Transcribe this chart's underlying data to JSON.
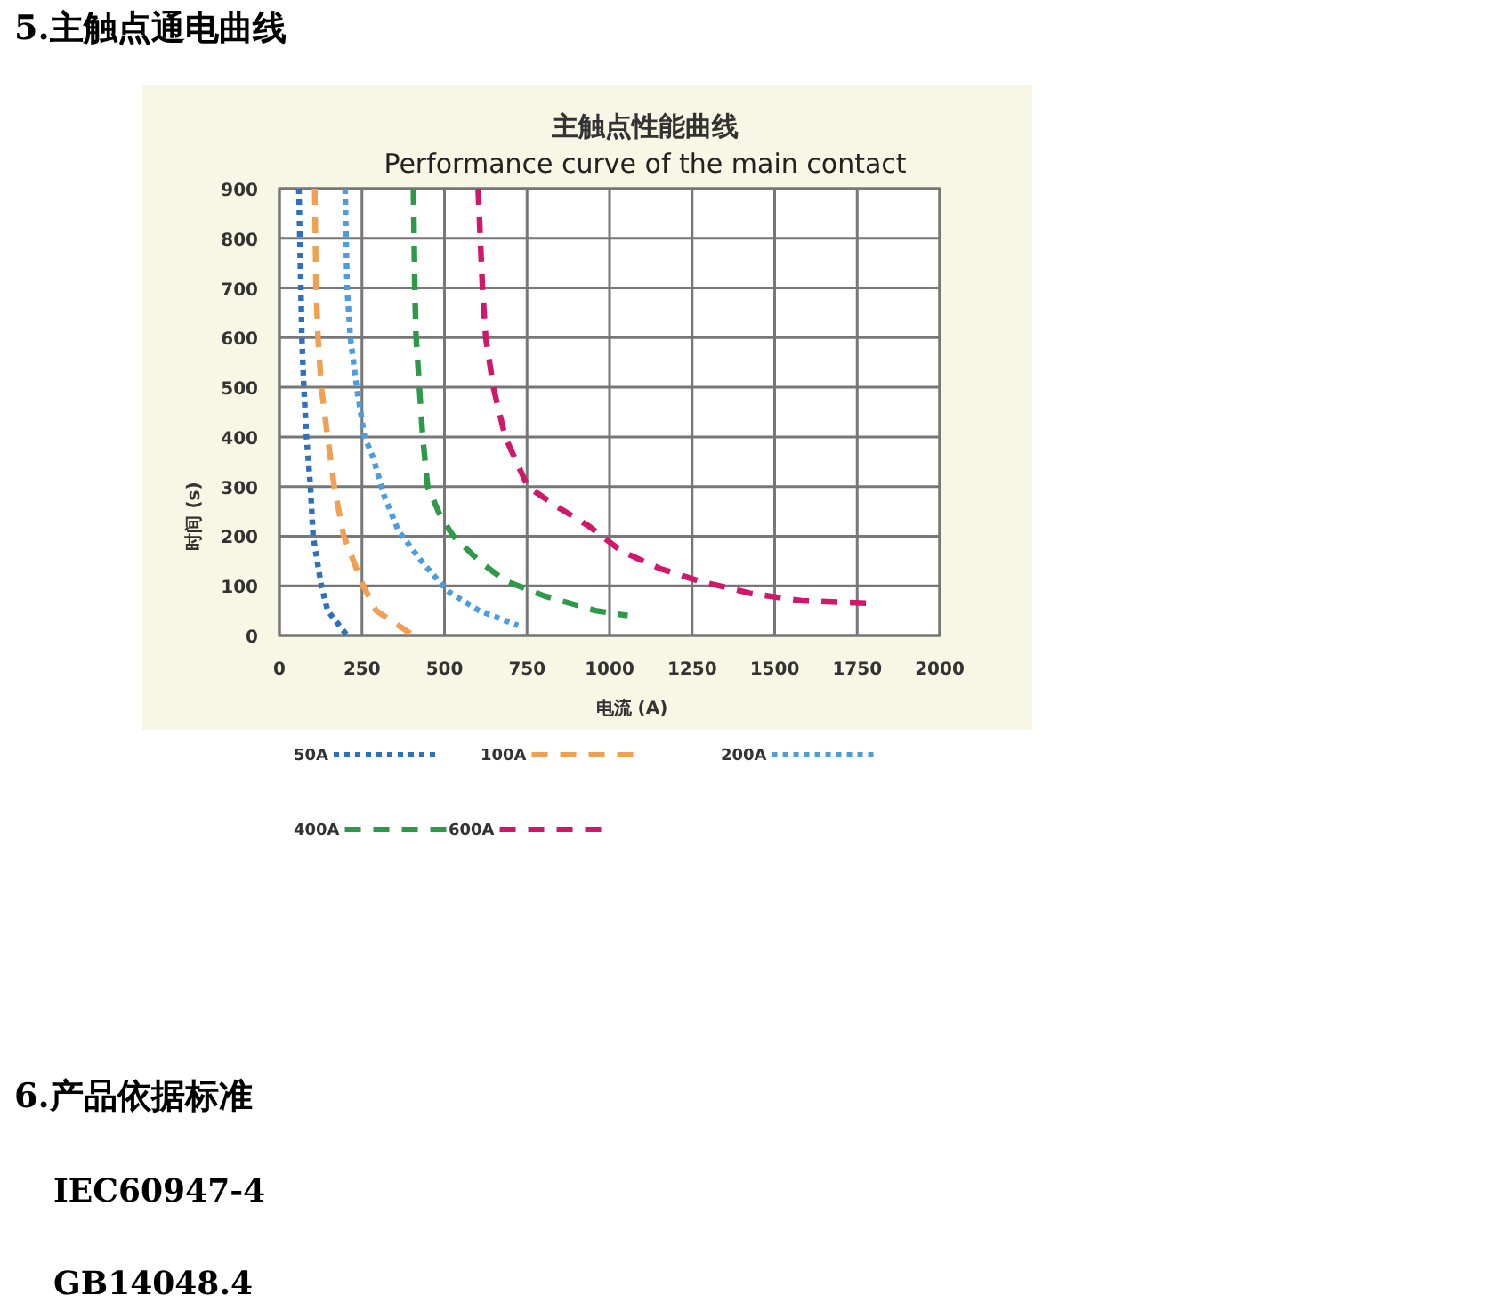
{
  "chart_data": {
    "type": "line",
    "title": "主触点性能曲线",
    "subtitle": "Performance curve of the main contact",
    "xlabel": "电流 (A)",
    "ylabel": "时间 (s)",
    "annotations": [
      "5.主触点通电曲线",
      "6.产品依据标准",
      "IEC60947-4",
      "GB14048.4"
    ],
    "xlim": [
      0,
      2000
    ],
    "xticks": [
      0,
      250,
      500,
      750,
      1000,
      1250,
      1500,
      1750,
      2000
    ],
    "ylim": [
      0,
      900
    ],
    "yticks": [
      0,
      100,
      200,
      300,
      400,
      500,
      600,
      700,
      800,
      900
    ],
    "grid": true,
    "legend": "bottom",
    "marker": "none",
    "series": [
      {
        "name": "50A",
        "color": "#2f6fc0",
        "line_style": "dotted",
        "x": [
          59,
          68,
          74,
          82,
          94,
          102,
          127,
          146,
          205
        ],
        "values": [
          900,
          600,
          500,
          400,
          300,
          200,
          100,
          50,
          0
        ]
      },
      {
        "name": "100A",
        "color": "#f0a050",
        "line_style": "dashed",
        "x": [
          107,
          111,
          117,
          127,
          146,
          166,
          195,
          254,
          293,
          406
        ],
        "values": [
          900,
          700,
          600,
          500,
          400,
          300,
          200,
          100,
          50,
          0
        ]
      },
      {
        "name": "200A",
        "color": "#4a9ee0",
        "line_style": "dotted",
        "x": [
          199,
          205,
          215,
          234,
          258,
          283,
          318,
          361,
          430,
          508,
          605,
          723
        ],
        "values": [
          900,
          700,
          600,
          500,
          400,
          360,
          280,
          210,
          150,
          90,
          50,
          20
        ]
      },
      {
        "name": "400A",
        "color": "#2e9a48",
        "line_style": "dashed",
        "x": [
          406,
          410,
          414,
          424,
          434,
          449,
          488,
          527,
          605,
          684,
          801,
          957,
          1055
        ],
        "values": [
          900,
          700,
          600,
          500,
          400,
          300,
          240,
          200,
          150,
          110,
          80,
          50,
          40
        ]
      },
      {
        "name": "600A",
        "color": "#d0186a",
        "line_style": "dashed",
        "x": [
          602,
          615,
          625,
          648,
          684,
          752,
          840,
          938,
          1035,
          1152,
          1270,
          1426,
          1582,
          1777
        ],
        "values": [
          900,
          700,
          600,
          500,
          400,
          300,
          260,
          220,
          170,
          135,
          110,
          85,
          70,
          65
        ]
      }
    ]
  }
}
